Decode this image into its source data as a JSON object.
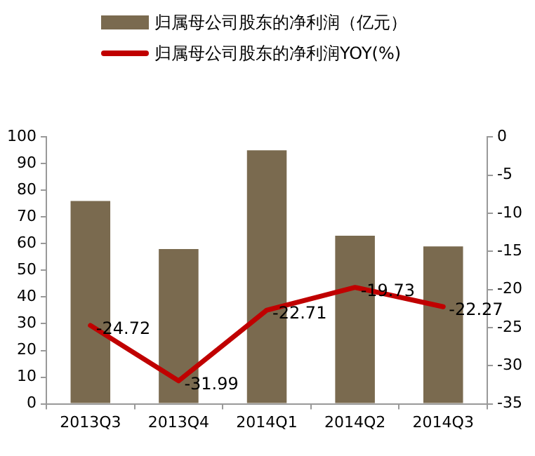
{
  "chart_data": {
    "type": "bar",
    "categories": [
      "2013Q3",
      "2013Q4",
      "2014Q1",
      "2014Q2",
      "2014Q3"
    ],
    "series": [
      {
        "name": "归属母公司股东的净利润（亿元）",
        "color": "#7a6a4f",
        "values": [
          76,
          58,
          95,
          63,
          59
        ]
      },
      {
        "name": "归属母公司股东的净利润YOY(%)",
        "type": "line",
        "axis": "y2",
        "color": "#c00000",
        "values": [
          -24.72,
          -31.99,
          -22.71,
          -19.73,
          -22.27
        ],
        "value_labels": [
          "-24.72",
          "-31.99",
          "-22.71",
          "-19.73",
          "-22.27"
        ]
      }
    ],
    "ylim": [
      0,
      100
    ],
    "yticks": [
      0,
      10,
      20,
      30,
      40,
      50,
      60,
      70,
      80,
      90,
      100
    ],
    "y2lim": [
      -35,
      0
    ],
    "y2ticks": [
      -35,
      -30,
      -25,
      -20,
      -15,
      -10,
      -5,
      0
    ],
    "grid": false,
    "legend": "top",
    "marker": "none"
  }
}
